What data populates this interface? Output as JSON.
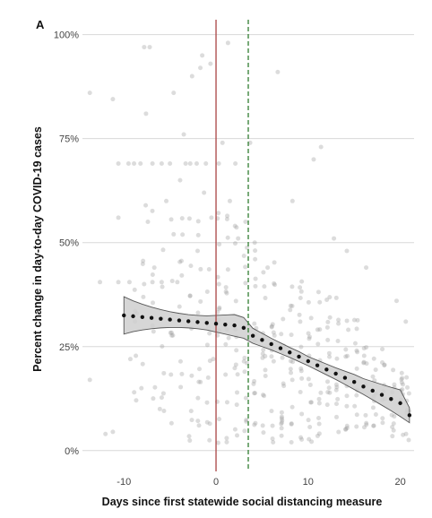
{
  "chart_data": {
    "type": "scatter",
    "panel_label": "A",
    "title": "",
    "xlabel": "Days since first statewide social distancing measure",
    "ylabel": "Percent change in day-to-day COVID-19 cases",
    "xlim": [
      -14.5,
      21.5
    ],
    "ylim": [
      -5,
      101
    ],
    "x_ticks": [
      -10,
      0,
      10,
      20
    ],
    "x_tick_labels": [
      "-10",
      "0",
      "10",
      "20"
    ],
    "y_ticks": [
      0,
      25,
      50,
      75,
      100
    ],
    "y_tick_labels": [
      "0%",
      "25%",
      "50%",
      "75%",
      "100%"
    ],
    "grid": "horizontal",
    "legend": "none",
    "vertical_lines": [
      {
        "x": 0,
        "style": "solid",
        "color": "#a94444"
      },
      {
        "x": 3.5,
        "style": "dashed",
        "color": "#2f7d2f"
      }
    ],
    "fitted_series": {
      "x": [
        -10,
        -9,
        -8,
        -7,
        -6,
        -5,
        -4,
        -3,
        -2,
        -1,
        0,
        1,
        2,
        3,
        4,
        5,
        6,
        7,
        8,
        9,
        10,
        11,
        12,
        13,
        14,
        15,
        16,
        17,
        18,
        19,
        20,
        21
      ],
      "y": [
        32.5,
        32.3,
        32.1,
        31.9,
        31.7,
        31.5,
        31.3,
        31.1,
        30.9,
        30.7,
        30.5,
        30.3,
        30.1,
        29.5,
        27.6,
        26.6,
        25.6,
        24.6,
        23.6,
        22.6,
        21.5,
        20.5,
        19.5,
        18.5,
        17.5,
        16.5,
        15.4,
        14.4,
        13.4,
        12.4,
        11.4,
        8.5
      ],
      "ci_lower": [
        28.0,
        28.6,
        29.0,
        29.3,
        29.5,
        29.6,
        29.6,
        29.5,
        29.3,
        29.0,
        28.5,
        28.0,
        27.5,
        27.0,
        25.8,
        25.0,
        24.2,
        23.3,
        22.4,
        21.4,
        20.4,
        19.3,
        18.2,
        17.1,
        15.9,
        14.7,
        13.5,
        12.2,
        10.9,
        9.6,
        8.2,
        6.7
      ],
      "ci_upper": [
        37.0,
        36.0,
        35.2,
        34.5,
        33.9,
        33.4,
        33.0,
        32.7,
        32.5,
        32.4,
        32.5,
        32.6,
        32.7,
        32.0,
        29.4,
        28.2,
        27.0,
        25.9,
        24.8,
        23.8,
        22.6,
        21.7,
        20.8,
        19.9,
        19.1,
        18.3,
        17.3,
        16.6,
        15.9,
        15.2,
        14.6,
        10.3
      ]
    },
    "scatter_points": [
      [
        -13.7,
        86
      ],
      [
        -13.7,
        17
      ],
      [
        -12.6,
        40.5
      ],
      [
        -12,
        4
      ],
      [
        -11.2,
        84.5
      ],
      [
        -11.2,
        4.5
      ],
      [
        -10.6,
        69
      ],
      [
        -10.6,
        40.5
      ],
      [
        -10.6,
        56
      ],
      [
        -9.5,
        69
      ],
      [
        -9.4,
        40.5
      ],
      [
        -9.3,
        22
      ],
      [
        -8.9,
        69
      ],
      [
        -8.6,
        33
      ],
      [
        -8.2,
        69
      ],
      [
        -8.1,
        15
      ],
      [
        -7.8,
        97
      ],
      [
        -7.6,
        81
      ],
      [
        -7.4,
        55
      ],
      [
        -7.2,
        97
      ],
      [
        -6.9,
        69
      ],
      [
        -6.9,
        40.5
      ],
      [
        -6.7,
        44
      ],
      [
        -6.1,
        10
      ],
      [
        -5.9,
        40.5
      ],
      [
        -5.9,
        69
      ],
      [
        -5.4,
        60
      ],
      [
        -5,
        69
      ],
      [
        -4.6,
        86
      ],
      [
        -4.6,
        52
      ],
      [
        -4.2,
        40.5
      ],
      [
        -3.9,
        65
      ],
      [
        -3.5,
        76
      ],
      [
        -3.3,
        69
      ],
      [
        -2.8,
        69
      ],
      [
        -2.6,
        90
      ],
      [
        -2.1,
        69
      ],
      [
        -2,
        48
      ],
      [
        -1.7,
        92
      ],
      [
        -1.5,
        95
      ],
      [
        -1.3,
        62
      ],
      [
        -1.1,
        69
      ],
      [
        -0.6,
        93
      ],
      [
        -0.5,
        56
      ],
      [
        -0.3,
        22
      ],
      [
        0.3,
        69
      ],
      [
        0.7,
        74
      ],
      [
        1.3,
        98
      ],
      [
        1.5,
        60
      ],
      [
        2.1,
        69
      ],
      [
        2.4,
        51
      ],
      [
        3.2,
        55
      ],
      [
        3.7,
        74
      ],
      [
        4.2,
        50
      ],
      [
        5.6,
        44
      ],
      [
        6.7,
        91
      ],
      [
        8.3,
        60
      ],
      [
        10.6,
        70
      ],
      [
        11.4,
        73
      ],
      [
        12.8,
        51
      ],
      [
        14.2,
        48
      ],
      [
        16.3,
        44
      ],
      [
        19.6,
        36
      ],
      [
        20.6,
        31
      ]
    ],
    "scatter_columns": [
      {
        "x": -8.8,
        "range": [
          8,
          60
        ],
        "n": 6
      },
      {
        "x": -7.8,
        "range": [
          12,
          62
        ],
        "n": 6
      },
      {
        "x": -6.8,
        "range": [
          6,
          60
        ],
        "n": 7
      },
      {
        "x": -5.8,
        "range": [
          5,
          62
        ],
        "n": 8
      },
      {
        "x": -4.8,
        "range": [
          4,
          58
        ],
        "n": 8
      },
      {
        "x": -3.8,
        "range": [
          3,
          60
        ],
        "n": 9
      },
      {
        "x": -2.8,
        "range": [
          2,
          62
        ],
        "n": 10
      },
      {
        "x": -1.8,
        "range": [
          2,
          65
        ],
        "n": 11
      },
      {
        "x": -0.8,
        "range": [
          2,
          60
        ],
        "n": 11
      },
      {
        "x": 0.2,
        "range": [
          0,
          63
        ],
        "n": 14
      },
      {
        "x": 1.2,
        "range": [
          0,
          58
        ],
        "n": 14
      },
      {
        "x": 2.2,
        "range": [
          0,
          60
        ],
        "n": 14
      },
      {
        "x": 3.2,
        "range": [
          0,
          55
        ],
        "n": 13
      },
      {
        "x": 4.2,
        "range": [
          0,
          50
        ],
        "n": 14
      },
      {
        "x": 5.2,
        "range": [
          2,
          48
        ],
        "n": 15
      },
      {
        "x": 6.2,
        "range": [
          2,
          47
        ],
        "n": 15
      },
      {
        "x": 7.2,
        "range": [
          3,
          45
        ],
        "n": 15
      },
      {
        "x": 8.2,
        "range": [
          2,
          44
        ],
        "n": 14
      },
      {
        "x": 9.2,
        "range": [
          2,
          42
        ],
        "n": 14
      },
      {
        "x": 10.2,
        "range": [
          2,
          42
        ],
        "n": 14
      },
      {
        "x": 11.2,
        "range": [
          3,
          40
        ],
        "n": 13
      },
      {
        "x": 12.2,
        "range": [
          3,
          38
        ],
        "n": 13
      },
      {
        "x": 13.2,
        "range": [
          3,
          37
        ],
        "n": 13
      },
      {
        "x": 14.2,
        "range": [
          3,
          34
        ],
        "n": 12
      },
      {
        "x": 15.2,
        "range": [
          3,
          32
        ],
        "n": 12
      },
      {
        "x": 16.2,
        "range": [
          3,
          30
        ],
        "n": 11
      },
      {
        "x": 17.2,
        "range": [
          3,
          28
        ],
        "n": 11
      },
      {
        "x": 18.2,
        "range": [
          3,
          25
        ],
        "n": 10
      },
      {
        "x": 19.2,
        "range": [
          3,
          22
        ],
        "n": 10
      },
      {
        "x": 20.2,
        "range": [
          2,
          20
        ],
        "n": 10
      },
      {
        "x": 20.8,
        "range": [
          2,
          18
        ],
        "n": 9
      }
    ],
    "colors": {
      "scatter": "#9a9a9a",
      "fit_points": "#111111",
      "ci_fill": "#cfcfcf",
      "ci_edge": "#555555",
      "grid": "#d8d8d8"
    }
  }
}
